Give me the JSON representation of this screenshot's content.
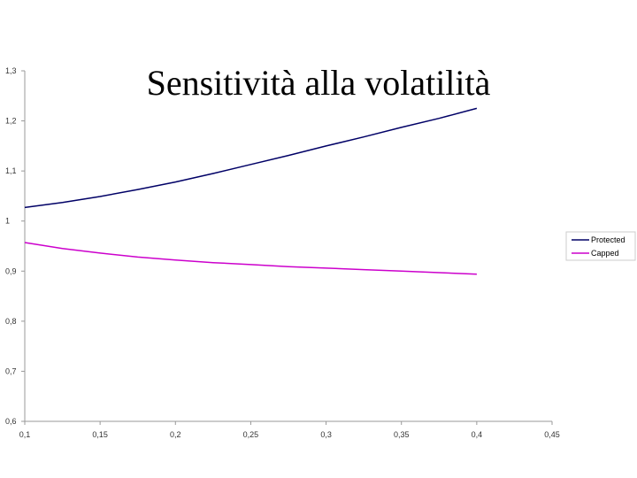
{
  "slide": {
    "title": "Sensitività alla volatilità"
  },
  "colors": {
    "background": "#ffffff",
    "axis": "#999999"
  },
  "chart_data": {
    "type": "line",
    "title": "",
    "xlabel": "",
    "ylabel": "",
    "xlim": [
      0.1,
      0.45
    ],
    "ylim": [
      0.6,
      1.3
    ],
    "x_ticks": [
      0.1,
      0.15,
      0.2,
      0.25,
      0.3,
      0.35,
      0.4,
      0.45
    ],
    "x_tick_labels": [
      "0,1",
      "0,15",
      "0,2",
      "0,25",
      "0,3",
      "0,35",
      "0,4",
      "0,45"
    ],
    "y_ticks": [
      0.6,
      0.7,
      0.8,
      0.9,
      1.0,
      1.1,
      1.2,
      1.3
    ],
    "y_tick_labels": [
      "0,6",
      "0,7",
      "0,8",
      "0,9",
      "1",
      "1,1",
      "1,2",
      "1,3"
    ],
    "grid": false,
    "legend_position": "right",
    "x": [
      0.1,
      0.125,
      0.15,
      0.175,
      0.2,
      0.225,
      0.25,
      0.275,
      0.3,
      0.325,
      0.35,
      0.375,
      0.4
    ],
    "series": [
      {
        "name": "Protected",
        "color": "#000066",
        "values": [
          1.027,
          1.037,
          1.049,
          1.063,
          1.078,
          1.095,
          1.113,
          1.131,
          1.15,
          1.168,
          1.187,
          1.205,
          1.225
        ]
      },
      {
        "name": "Capped",
        "color": "#cc00cc",
        "values": [
          0.957,
          0.945,
          0.936,
          0.928,
          0.922,
          0.917,
          0.913,
          0.909,
          0.906,
          0.903,
          0.9,
          0.897,
          0.894
        ]
      }
    ]
  }
}
